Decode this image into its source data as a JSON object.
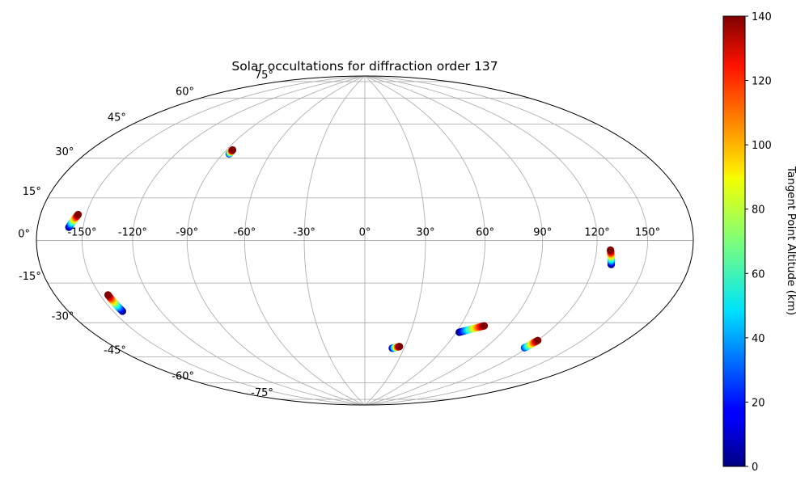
{
  "chart_data": {
    "type": "scatter",
    "projection": "hammer",
    "title": "Solar occultations for diffraction order 137",
    "grid": true,
    "longitude_ticks": [
      -150,
      -120,
      -90,
      -60,
      -30,
      0,
      30,
      60,
      90,
      120,
      150
    ],
    "longitude_tick_labels": [
      "-150°",
      "-120°",
      "-90°",
      "-60°",
      "-30°",
      "0°",
      "30°",
      "60°",
      "90°",
      "120°",
      "150°"
    ],
    "latitude_ticks": [
      -75,
      -60,
      -45,
      -30,
      -15,
      0,
      15,
      30,
      45,
      60,
      75
    ],
    "latitude_tick_labels": [
      "-75°",
      "-60°",
      "-45°",
      "-30°",
      "-15°",
      "0°",
      "15°",
      "30°",
      "45°",
      "60°",
      "75°"
    ],
    "colorbar": {
      "label": "Tangent Point Altitude (km)",
      "range": [
        0,
        140
      ],
      "ticks": [
        0,
        20,
        40,
        60,
        80,
        100,
        120,
        140
      ],
      "colormap": "jet"
    },
    "series": [
      {
        "lon_start": -159,
        "lat_start": 5,
        "lon_end": -155,
        "lat_end": 10,
        "alt_start": 0,
        "alt_end": 140
      },
      {
        "lon_start": -86,
        "lat_start": 41,
        "lon_end": -86,
        "lat_end": 43,
        "alt_start": 20,
        "alt_end": 140
      },
      {
        "lon_start": -144,
        "lat_start": -29,
        "lon_end": -145,
        "lat_end": -22,
        "alt_start": 0,
        "alt_end": 140
      },
      {
        "lon_start": 21,
        "lat_start": -55,
        "lon_end": 26,
        "lat_end": -54,
        "alt_start": 0,
        "alt_end": 140
      },
      {
        "lon_start": 62,
        "lat_start": -45,
        "lon_end": 75,
        "lat_end": -41,
        "alt_start": 0,
        "alt_end": 140
      },
      {
        "lon_start": 130,
        "lat_start": -10,
        "lon_end": 128,
        "lat_end": -4,
        "alt_start": 0,
        "alt_end": 140
      },
      {
        "lon_start": 118,
        "lat_start": -49,
        "lon_end": 120,
        "lat_end": -45,
        "alt_start": 25,
        "alt_end": 140
      }
    ]
  }
}
